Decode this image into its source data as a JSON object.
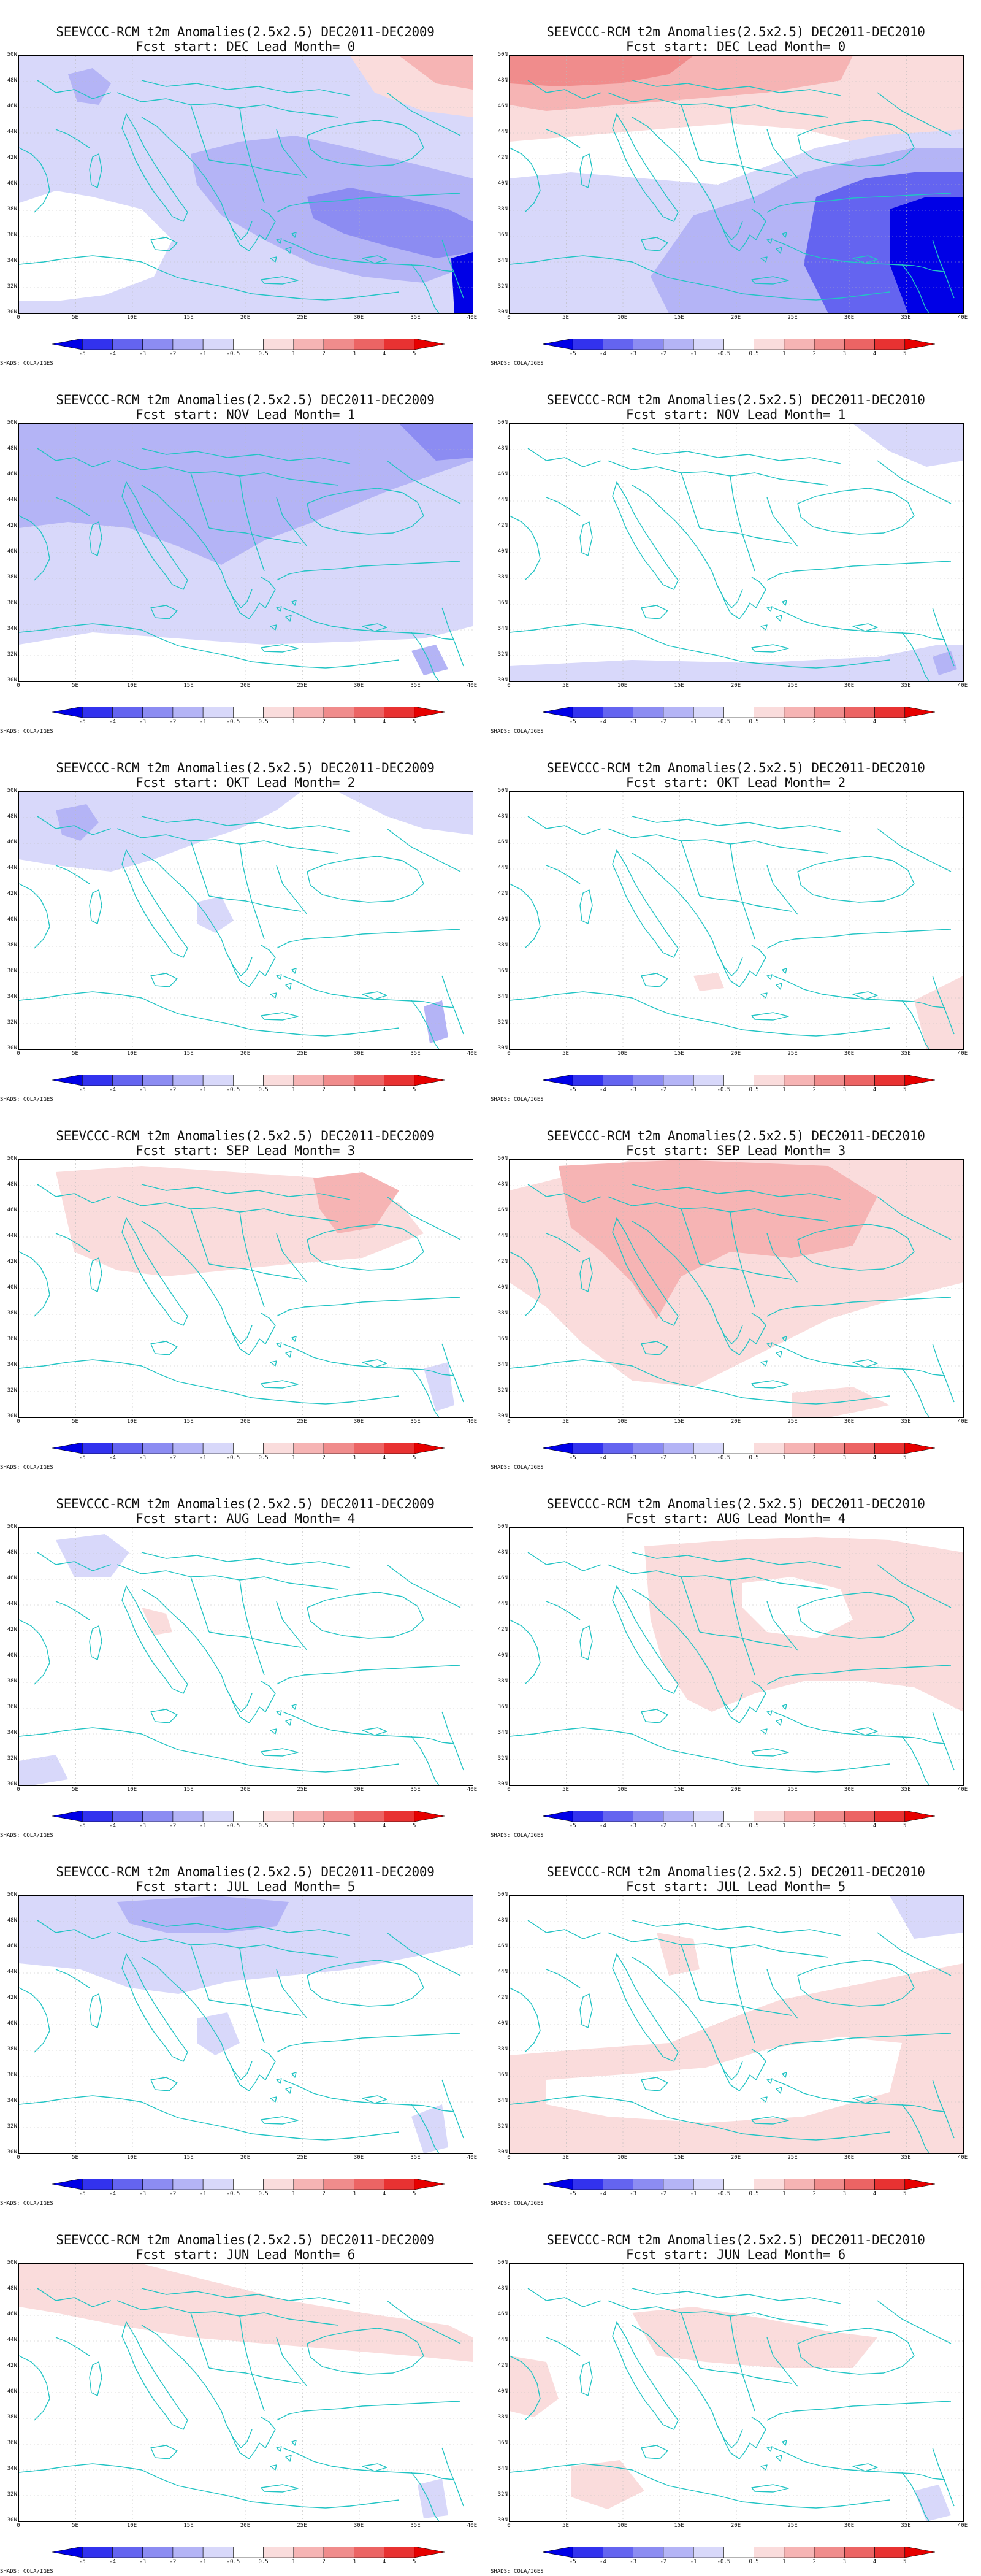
{
  "figure": {
    "title_prefix": "SEEVCCC-RCM t2m Anomalies(2.5x2.5)",
    "shading_note": "SHADS: COLA/IGES",
    "lat_labels": [
      "50N",
      "48N",
      "46N",
      "44N",
      "42N",
      "40N",
      "38N",
      "36N",
      "34N",
      "32N",
      "30N"
    ],
    "lon_labels": [
      "0",
      "5E",
      "10E",
      "15E",
      "20E",
      "25E",
      "30E",
      "35E",
      "40E"
    ],
    "colorbar_labels": [
      "-5",
      "-4",
      "-3",
      "-2",
      "-1",
      "-0.5",
      "0.5",
      "1",
      "2",
      "3",
      "4",
      "5"
    ],
    "colorbar_colors": [
      "#0000e6",
      "#3232ee",
      "#6464f0",
      "#8c8cf2",
      "#b4b4f6",
      "#d8d8fa",
      "#ffffff",
      "#fadcdc",
      "#f6b4b4",
      "#f08c8c",
      "#ec6464",
      "#e83232",
      "#e60000"
    ]
  },
  "panels": [
    {
      "period": "DEC2011-DEC2009",
      "subtitle": "Fcst start: DEC  Lead Month= 0"
    },
    {
      "period": "DEC2011-DEC2010",
      "subtitle": "Fcst start: DEC  Lead Month= 0"
    },
    {
      "period": "DEC2011-DEC2009",
      "subtitle": "Fcst start: NOV  Lead Month= 1"
    },
    {
      "period": "DEC2011-DEC2010",
      "subtitle": "Fcst start: NOV  Lead Month= 1"
    },
    {
      "period": "DEC2011-DEC2009",
      "subtitle": "Fcst start: OKT  Lead Month= 2"
    },
    {
      "period": "DEC2011-DEC2010",
      "subtitle": "Fcst start: OKT  Lead Month= 2"
    },
    {
      "period": "DEC2011-DEC2009",
      "subtitle": "Fcst start: SEP  Lead Month= 3"
    },
    {
      "period": "DEC2011-DEC2010",
      "subtitle": "Fcst start: SEP  Lead Month= 3"
    },
    {
      "period": "DEC2011-DEC2009",
      "subtitle": "Fcst start: AUG  Lead Month= 4"
    },
    {
      "period": "DEC2011-DEC2010",
      "subtitle": "Fcst start: AUG  Lead Month= 4"
    },
    {
      "period": "DEC2011-DEC2009",
      "subtitle": "Fcst start: JUL  Lead Month= 5"
    },
    {
      "period": "DEC2011-DEC2010",
      "subtitle": "Fcst start: JUL  Lead Month= 5"
    },
    {
      "period": "DEC2011-DEC2009",
      "subtitle": "Fcst start: JUN  Lead Month= 6"
    },
    {
      "period": "DEC2011-DEC2010",
      "subtitle": "Fcst start: JUN  Lead Month= 6"
    }
  ]
}
